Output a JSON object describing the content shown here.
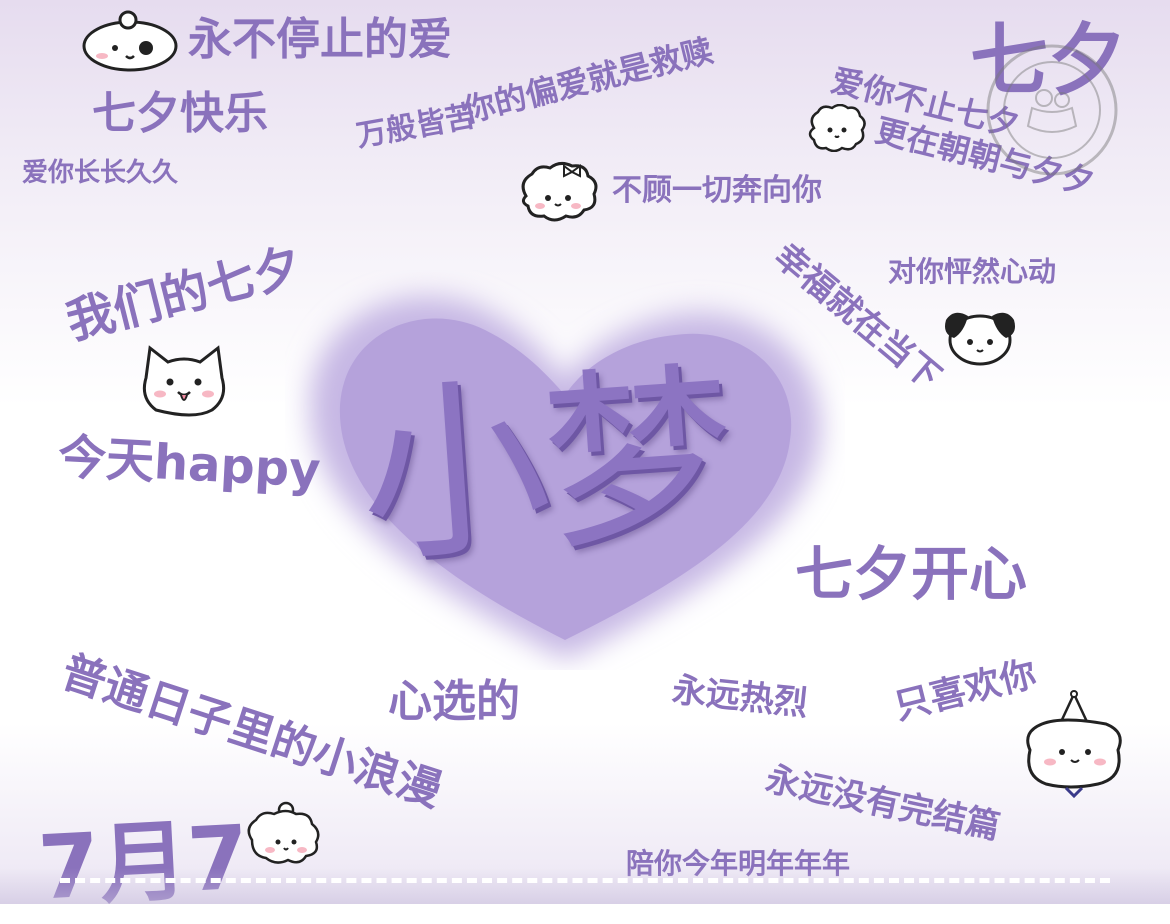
{
  "colors": {
    "accent": "#8a72bc",
    "heart": "#b7a5dc",
    "title": "#8c74c2"
  },
  "main_title": "小梦",
  "date": "7月7",
  "phrases": {
    "p1": "永不停止的爱",
    "p2": "七夕快乐",
    "p3": "爱你长长久久",
    "p4": "万般皆苦",
    "p5": "你的偏爱就是救赎",
    "p6": "七夕",
    "p7": "爱你不止七夕",
    "p8": "更在朝朝与夕夕",
    "p9": "不顾一切奔向你",
    "p10": "我们的七夕",
    "p11": "对你怦然心动",
    "p12": "幸福就在当下",
    "p13": "今天happy",
    "p14": "七夕开心",
    "p15": "普通日子里的小浪漫",
    "p16": "心选的",
    "p17": "永远热烈",
    "p18": "只喜欢你",
    "p19": "永远没有完结篇",
    "p20": "陪你今年明年年年"
  },
  "icons": [
    "puppy-face-icon",
    "fluffy-sheep-icon",
    "bow-puppy-icon",
    "spotted-dog-icon",
    "samoyed-dog-icon",
    "party-hat-bear-icon",
    "fluffy-poodle-icon",
    "round-seal-stamp-icon"
  ]
}
